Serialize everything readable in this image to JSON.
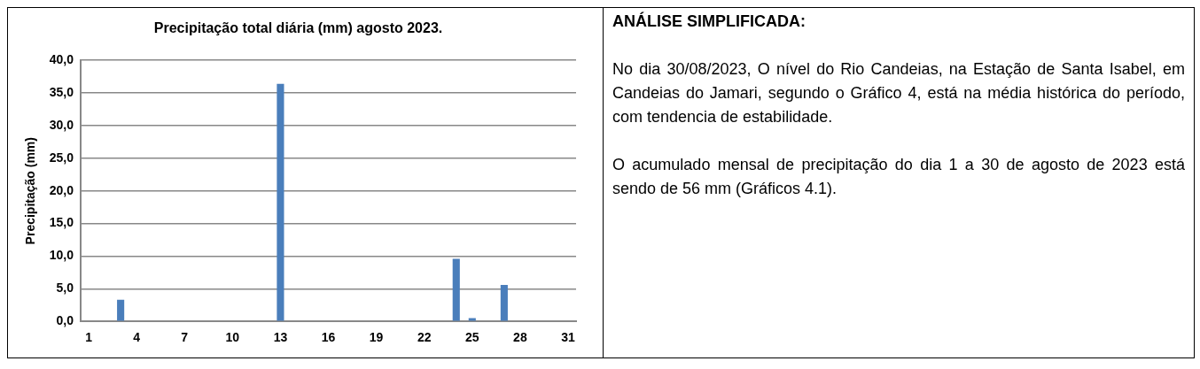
{
  "chart_data": {
    "type": "bar",
    "title": "Precipitação total diária (mm) agosto 2023.",
    "ylabel": "Precipitação (mm)",
    "categories": [
      "1",
      null,
      null,
      "4",
      null,
      null,
      "7",
      null,
      null,
      "10",
      null,
      null,
      "13",
      null,
      null,
      "16",
      null,
      null,
      "19",
      null,
      null,
      "22",
      null,
      null,
      "25",
      null,
      null,
      "28",
      null,
      null,
      "31"
    ],
    "values": [
      0,
      0,
      3.3,
      0,
      0,
      0,
      0,
      0,
      0.1,
      0,
      0,
      0,
      36.4,
      0,
      0,
      0,
      0,
      0,
      0,
      0,
      0,
      0,
      0,
      9.6,
      0.5,
      0,
      5.6,
      0,
      0,
      0,
      0
    ],
    "color": "#4a7ebb",
    "ylim": [
      0,
      40
    ],
    "yticks": [
      {
        "value": 0,
        "label": "0,0"
      },
      {
        "value": 5,
        "label": "5,0"
      },
      {
        "value": 10,
        "label": "10,0"
      },
      {
        "value": 15,
        "label": "15,0"
      },
      {
        "value": 20,
        "label": "20,0"
      },
      {
        "value": 25,
        "label": "25,0"
      },
      {
        "value": 30,
        "label": "30,0"
      },
      {
        "value": 35,
        "label": "35,0"
      },
      {
        "value": 40,
        "label": "40,0"
      }
    ],
    "grid": "y",
    "legend": false,
    "annotations": [
      "ANÁLISE SIMPLIFICADA:",
      "No dia 30/08/2023, O nível do Rio Candeias, na Estação de Santa Isabel, em Candeias do Jamari, segundo o Gráfico 4, está na média histórica do período, com tendencia de estabilidade.",
      "O acumulado mensal de precipitação do dia 1 a 30 de agosto de 2023 está sendo de 56 mm (Gráficos 4.1)."
    ]
  }
}
